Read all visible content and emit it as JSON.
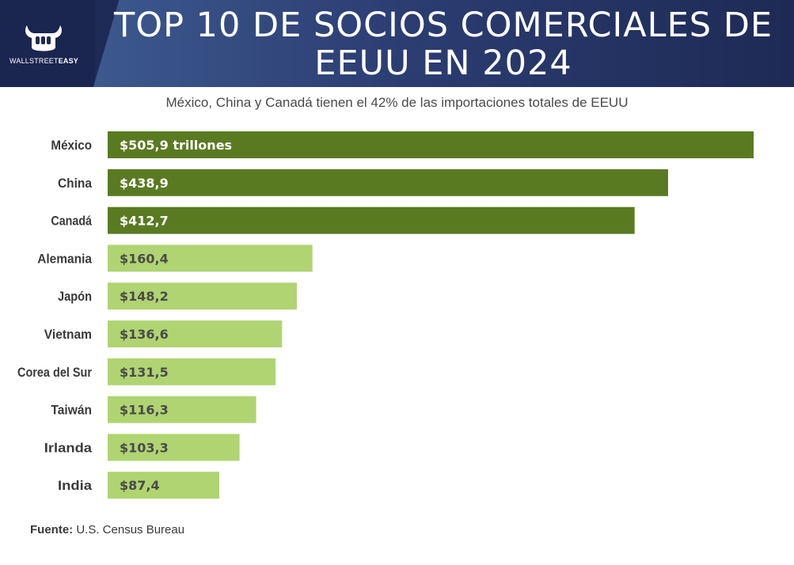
{
  "header": {
    "title": "TOP 10 DE SOCIOS COMERCIALES DE EEUU EN 2024",
    "logo_text_a": "WALLSTREET",
    "logo_text_b": "EASY"
  },
  "subtitle": "México, China y Canadá tienen el 42% de las importaciones totales de EEUU",
  "source": {
    "label": "Fuente:",
    "value": "U.S. Census Bureau"
  },
  "colors": {
    "top3": "#5a7a22",
    "rest": "#b0d472",
    "header_bg": "#1f2b57"
  },
  "chart_data": {
    "type": "bar",
    "orientation": "horizontal",
    "categories": [
      "México",
      "China",
      "Canadá",
      "Alemania",
      "Japón",
      "Vietnam",
      "Corea del Sur",
      "Taiwán",
      "Irlanda",
      "India"
    ],
    "values": [
      505.9,
      438.9,
      412.7,
      160.4,
      148.2,
      136.6,
      131.5,
      116.3,
      103.3,
      87.4
    ],
    "data_labels": [
      "$505,9 trillones",
      "$438,9",
      "$412,7",
      "$160,4",
      "$148,2",
      "$136,6",
      "$131,5",
      "$116,3",
      "$103,3",
      "$87,4"
    ],
    "highlight_top": 3,
    "xlim": [
      0,
      505.9
    ],
    "grid": false,
    "legend": "none"
  }
}
